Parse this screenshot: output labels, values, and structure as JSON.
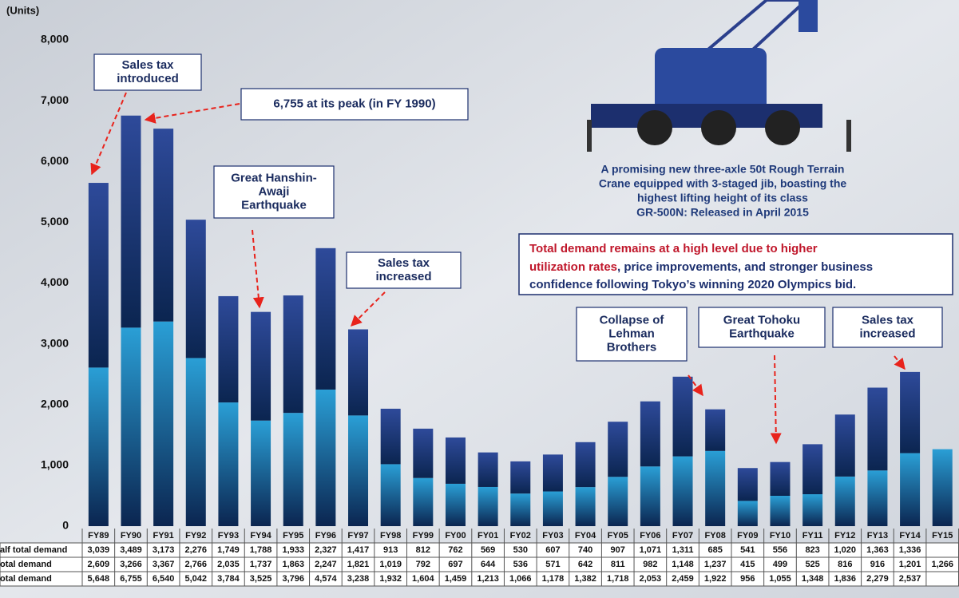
{
  "chart_data": {
    "type": "stacked-bar",
    "unit_label": "(Units)",
    "categories": [
      "FY89",
      "FY90",
      "FY91",
      "FY92",
      "FY93",
      "FY94",
      "FY95",
      "FY96",
      "FY97",
      "FY98",
      "FY99",
      "FY00",
      "FY01",
      "FY02",
      "FY03",
      "FY04",
      "FY05",
      "FY06",
      "FY07",
      "FY08",
      "FY09",
      "FY10",
      "FY11",
      "FY12",
      "FY13",
      "FY14",
      "FY15"
    ],
    "series": [
      {
        "name": "otal demand",
        "color": "#2a9fd6",
        "values": [
          2609,
          3266,
          3367,
          2766,
          2035,
          1737,
          1863,
          2247,
          1821,
          1019,
          792,
          697,
          644,
          536,
          571,
          642,
          811,
          982,
          1148,
          1237,
          415,
          499,
          525,
          816,
          916,
          1201,
          1266
        ],
        "value_labels": [
          "2,609",
          "3,266",
          "3,367",
          "2,766",
          "2,035",
          "1,737",
          "1,863",
          "2,247",
          "1,821",
          "1,019",
          "792",
          "697",
          "644",
          "536",
          "571",
          "642",
          "811",
          "982",
          "1,148",
          "1,237",
          "415",
          "499",
          "525",
          "816",
          "916",
          "1,201",
          "1,266"
        ]
      },
      {
        "name": "alf total demand",
        "color": "#2e4a9a",
        "values": [
          3039,
          3489,
          3173,
          2276,
          1749,
          1788,
          1933,
          2327,
          1417,
          913,
          812,
          762,
          569,
          530,
          607,
          740,
          907,
          1071,
          1311,
          685,
          541,
          556,
          823,
          1020,
          1363,
          1336,
          null
        ],
        "value_labels": [
          "3,039",
          "3,489",
          "3,173",
          "2,276",
          "1,749",
          "1,788",
          "1,933",
          "2,327",
          "1,417",
          "913",
          "812",
          "762",
          "569",
          "530",
          "607",
          "740",
          "907",
          "1,071",
          "1,311",
          "685",
          "541",
          "556",
          "823",
          "1,020",
          "1,363",
          "1,336",
          null
        ]
      }
    ],
    "totals": {
      "name": "otal demand",
      "values": [
        5648,
        6755,
        6540,
        5042,
        3784,
        3525,
        3796,
        4574,
        3238,
        1932,
        1604,
        1459,
        1213,
        1066,
        1178,
        1382,
        1718,
        2053,
        2459,
        1922,
        956,
        1055,
        1348,
        1836,
        2279,
        2537,
        null
      ],
      "value_labels": [
        "5,648",
        "6,755",
        "6,540",
        "5,042",
        "3,784",
        "3,525",
        "3,796",
        "4,574",
        "3,238",
        "1,932",
        "1,604",
        "1,459",
        "1,213",
        "1,066",
        "1,178",
        "1,382",
        "1,718",
        "2,053",
        "2,459",
        "1,922",
        "956",
        "1,055",
        "1,348",
        "1,836",
        "2,279",
        "2,537",
        null
      ]
    },
    "table_row_order": [
      1,
      0
    ],
    "ylim": [
      0,
      8000
    ],
    "yticks": [
      0,
      {
        "value": 1000,
        "label": "1,000"
      },
      {
        "value": 2000,
        "label": "2,000"
      },
      {
        "value": 3000,
        "label": "3,000"
      },
      {
        "value": 4000,
        "label": "4,000"
      },
      {
        "value": 5000,
        "label": "5,000"
      },
      {
        "value": 6000,
        "label": "6,000"
      },
      {
        "value": 7000,
        "label": "7,000"
      },
      {
        "value": 8000,
        "label": "8,000"
      }
    ],
    "annotations": [
      {
        "lines": [
          "Sales tax",
          "introduced"
        ]
      },
      {
        "lines": [
          "6,755 at its peak (in FY 1990)"
        ]
      },
      {
        "lines": [
          "Great Hanshin-",
          "Awaji",
          "Earthquake"
        ]
      },
      {
        "lines": [
          "Sales tax",
          "increased"
        ]
      },
      {
        "lines": [
          "Collapse of",
          "Lehman",
          "Brothers"
        ]
      },
      {
        "lines": [
          "Great  Tohoku",
          "Earthquake"
        ]
      },
      {
        "lines": [
          "Sales tax",
          "increased"
        ]
      }
    ],
    "caption": [
      "A promising new three-axle 50t Rough Terrain",
      "Crane equipped with 3-staged jib, boasting the",
      "highest lifting height of its class",
      "GR-500N: Released in April 2015"
    ],
    "callout": {
      "red1": "Total demand remains at a high level due to higher",
      "red2": "utilization rates",
      "blue2": ", price improvements, and stronger business",
      "blue3": "confidence following Tokyo’s winning 2020 Olympics bid."
    }
  }
}
